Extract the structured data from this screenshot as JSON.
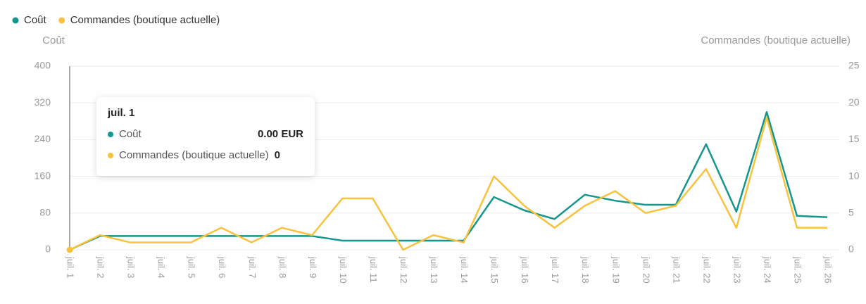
{
  "chart_data": {
    "type": "line",
    "categories": [
      "juil. 1",
      "juil. 2",
      "juil. 3",
      "juil. 4",
      "juil. 5",
      "juil. 6",
      "juil. 7",
      "juil. 8",
      "juil. 9",
      "juil. 10",
      "juil. 11",
      "juil. 12",
      "juil. 13",
      "juil. 14",
      "juil. 15",
      "juil. 16",
      "juil. 17",
      "juil. 18",
      "juil. 19",
      "juil. 20",
      "juil. 21",
      "juil. 22",
      "juil. 23",
      "juil. 24",
      "juil. 25",
      "juil. 26"
    ],
    "series": [
      {
        "name": "Coût",
        "color": "#13968c",
        "values": [
          0,
          30,
          30,
          30,
          30,
          30,
          30,
          30,
          30,
          20,
          20,
          20,
          20,
          20,
          115,
          86,
          67,
          120,
          107,
          98,
          98,
          230,
          83,
          300,
          74,
          71
        ]
      },
      {
        "name": "Commandes (boutique actuelle)",
        "color": "#f9c23c",
        "axis": "y2",
        "values": [
          0,
          2,
          1,
          1,
          1,
          3,
          1,
          3,
          2,
          7,
          7,
          0,
          2,
          1,
          10,
          6,
          3,
          6,
          8,
          5,
          6,
          11,
          3,
          18,
          3,
          3
        ]
      }
    ],
    "ylabel": "Coût",
    "y2label": "Commandes (boutique actuelle)",
    "ylim": [
      0,
      400
    ],
    "yticks": [
      0,
      80,
      160,
      240,
      320,
      400
    ],
    "y2lim": [
      0,
      25
    ],
    "y2ticks": [
      0,
      5,
      10,
      15,
      20,
      25
    ],
    "grid": true,
    "legend": "top-left",
    "tooltip": {
      "category": "juil. 1",
      "items": [
        {
          "name": "Coût",
          "value": 0,
          "label": "0.00 EUR"
        },
        {
          "name": "Commandes (boutique actuelle)",
          "value": 0
        }
      ]
    }
  }
}
